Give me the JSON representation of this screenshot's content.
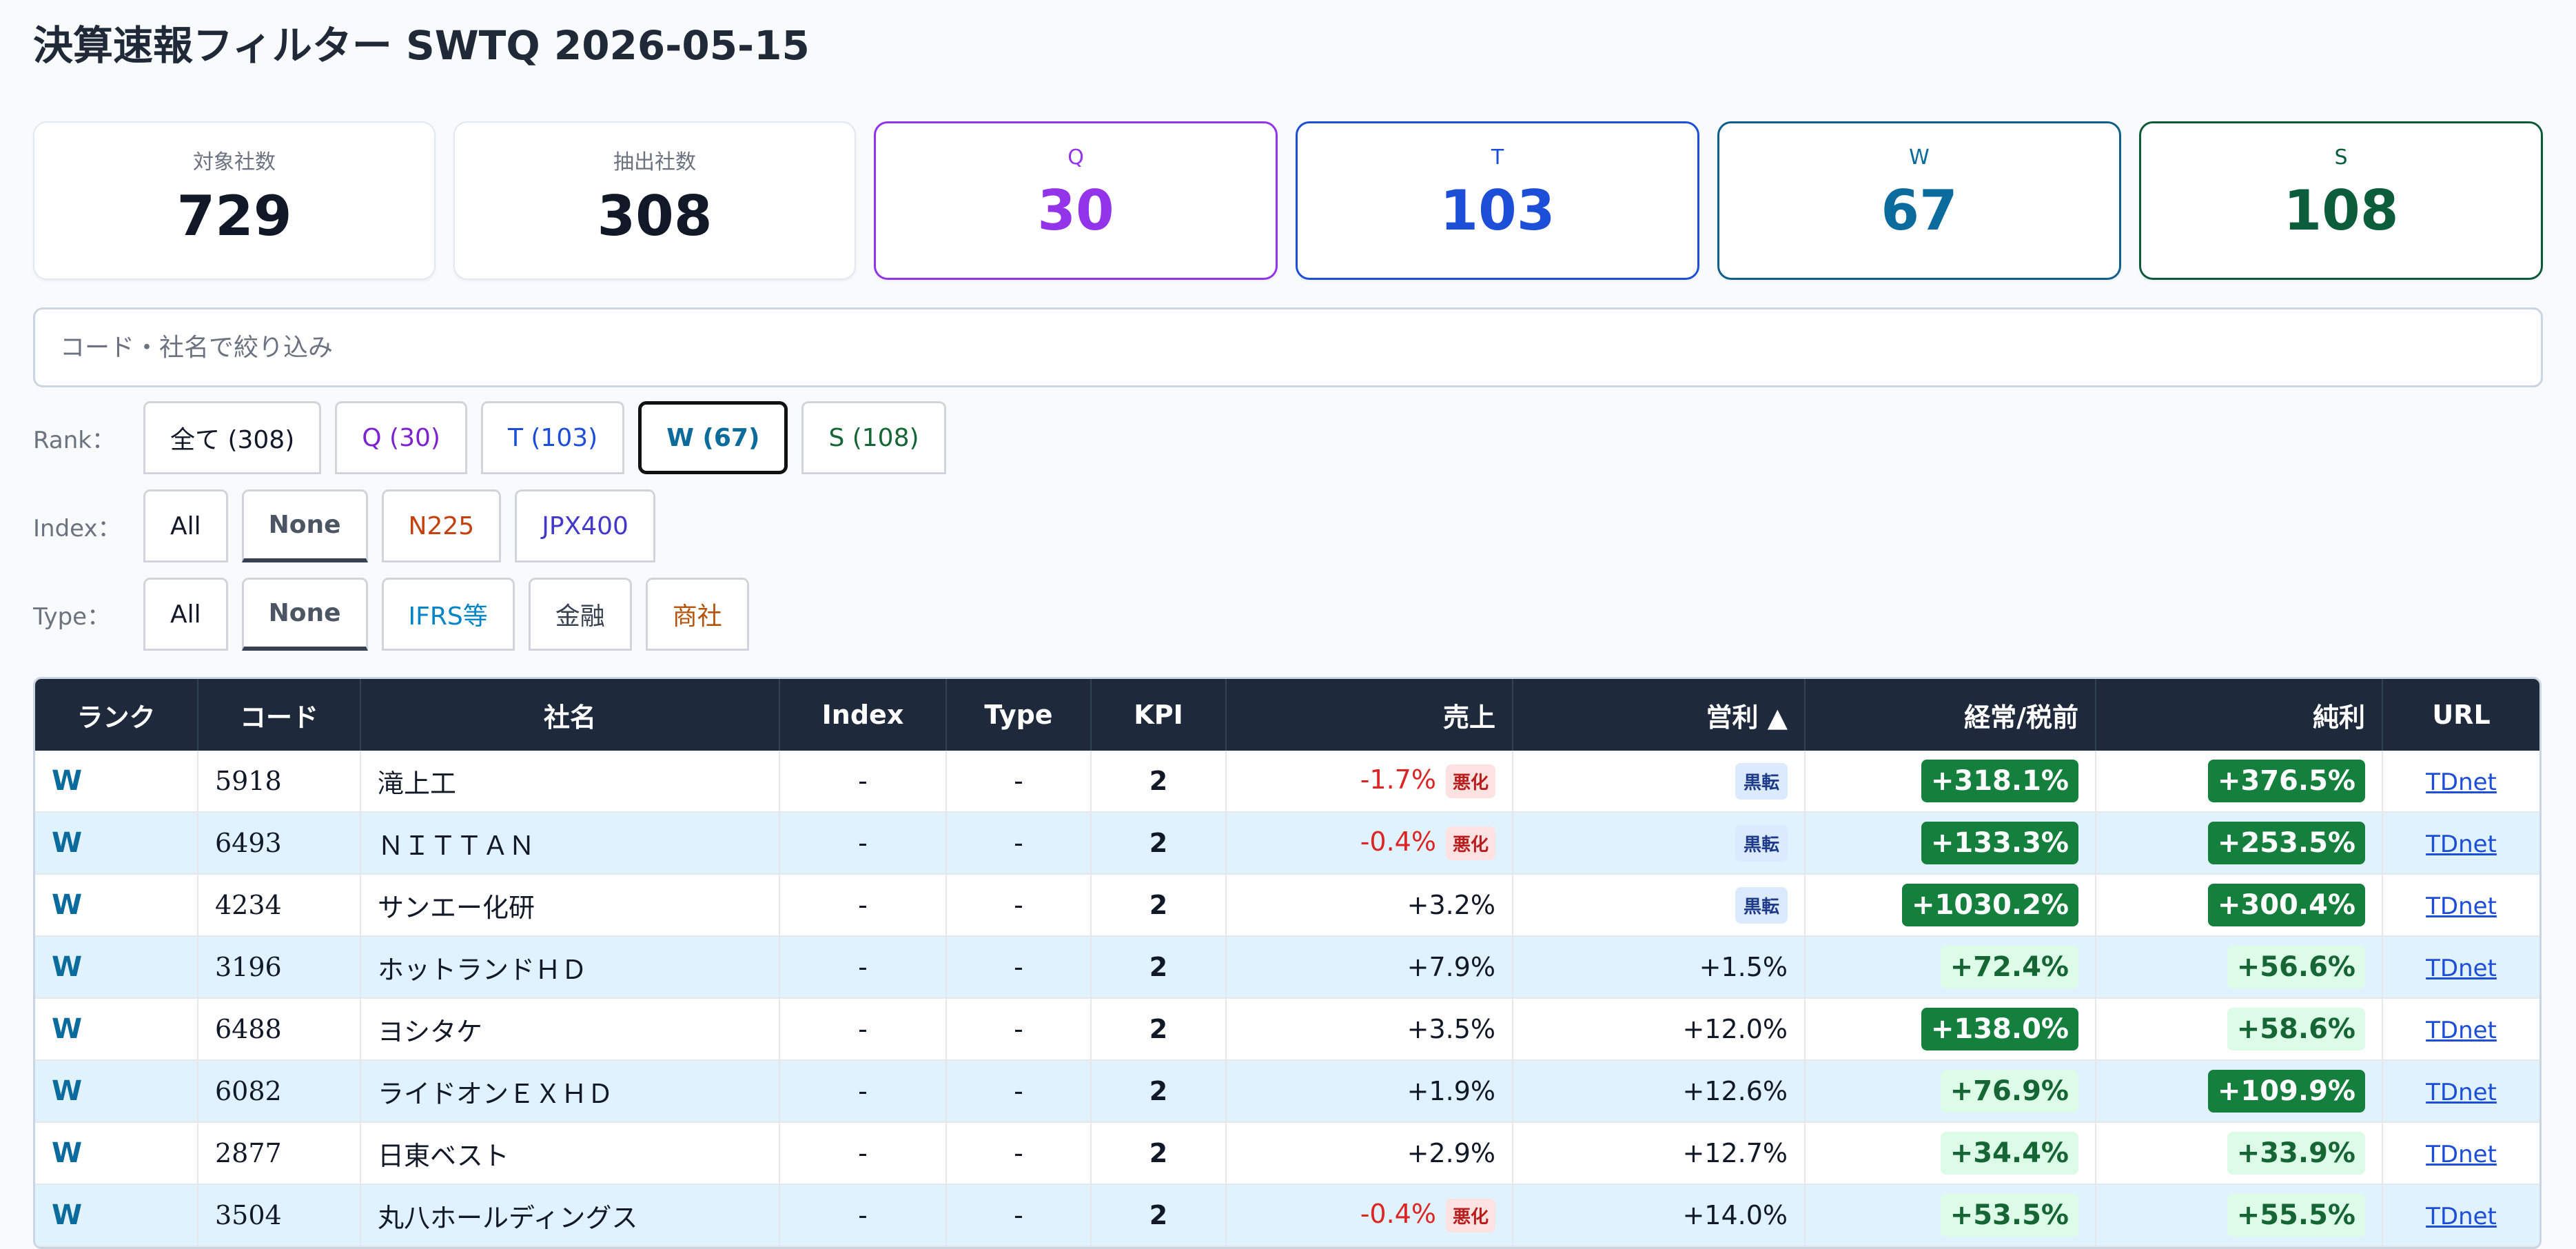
{
  "page": {
    "title": "決算速報フィルター SWTQ 2026-05-15"
  },
  "stats": [
    {
      "label": "対象社数",
      "value": "729",
      "style": "plain"
    },
    {
      "label": "抽出社数",
      "value": "308",
      "style": "plain"
    },
    {
      "label": "Q",
      "value": "30",
      "style": "q"
    },
    {
      "label": "T",
      "value": "103",
      "style": "t"
    },
    {
      "label": "W",
      "value": "67",
      "style": "w"
    },
    {
      "label": "S",
      "value": "108",
      "style": "s"
    }
  ],
  "search": {
    "placeholder": "コード・社名で絞り込み",
    "value": ""
  },
  "filters": {
    "rank": {
      "label": "Rank：",
      "chips": [
        "全て (308)",
        "Q (30)",
        "T (103)",
        "W (67)",
        "S (108)"
      ],
      "selected": "W (67)"
    },
    "index": {
      "label": "Index：",
      "chips": [
        "All",
        "None",
        "N225",
        "JPX400"
      ],
      "selected": "None"
    },
    "type": {
      "label": "Type：",
      "chips": [
        "All",
        "None",
        "IFRS等",
        "金融",
        "商社"
      ],
      "selected": "None"
    }
  },
  "table": {
    "headers": [
      "ランク",
      "コード",
      "社名",
      "Index",
      "Type",
      "KPI",
      "売上",
      "営利 ▲",
      "経常/税前",
      "純利",
      "URL"
    ],
    "rows": [
      {
        "rank": "W",
        "code": "5918",
        "name": "滝上工",
        "index": "-",
        "type": "-",
        "kpi": "2",
        "sales": "-1.7%",
        "sales_tag": "悪化",
        "op": "黒転",
        "op_kind": "turn",
        "ord": "+318.1%",
        "ord_kind": "strong",
        "net": "+376.5%",
        "net_kind": "strong",
        "url": "TDnet"
      },
      {
        "rank": "W",
        "code": "6493",
        "name": "ＮＩＴＴＡＮ",
        "index": "-",
        "type": "-",
        "kpi": "2",
        "sales": "-0.4%",
        "sales_tag": "悪化",
        "op": "黒転",
        "op_kind": "turn",
        "ord": "+133.3%",
        "ord_kind": "strong",
        "net": "+253.5%",
        "net_kind": "strong",
        "url": "TDnet"
      },
      {
        "rank": "W",
        "code": "4234",
        "name": "サンエー化研",
        "index": "-",
        "type": "-",
        "kpi": "2",
        "sales": "+3.2%",
        "sales_tag": "",
        "op": "黒転",
        "op_kind": "turn",
        "ord": "+1030.2%",
        "ord_kind": "strong",
        "net": "+300.4%",
        "net_kind": "strong",
        "url": "TDnet"
      },
      {
        "rank": "W",
        "code": "3196",
        "name": "ホットランドＨＤ",
        "index": "-",
        "type": "-",
        "kpi": "2",
        "sales": "+7.9%",
        "sales_tag": "",
        "op": "+1.5%",
        "op_kind": "plain",
        "ord": "+72.4%",
        "ord_kind": "light",
        "net": "+56.6%",
        "net_kind": "light",
        "url": "TDnet"
      },
      {
        "rank": "W",
        "code": "6488",
        "name": "ヨシタケ",
        "index": "-",
        "type": "-",
        "kpi": "2",
        "sales": "+3.5%",
        "sales_tag": "",
        "op": "+12.0%",
        "op_kind": "plain",
        "ord": "+138.0%",
        "ord_kind": "strong",
        "net": "+58.6%",
        "net_kind": "light",
        "url": "TDnet"
      },
      {
        "rank": "W",
        "code": "6082",
        "name": "ライドオンＥＸＨＤ",
        "index": "-",
        "type": "-",
        "kpi": "2",
        "sales": "+1.9%",
        "sales_tag": "",
        "op": "+12.6%",
        "op_kind": "plain",
        "ord": "+76.9%",
        "ord_kind": "light",
        "net": "+109.9%",
        "net_kind": "strong",
        "url": "TDnet"
      },
      {
        "rank": "W",
        "code": "2877",
        "name": "日東ベスト",
        "index": "-",
        "type": "-",
        "kpi": "2",
        "sales": "+2.9%",
        "sales_tag": "",
        "op": "+12.7%",
        "op_kind": "plain",
        "ord": "+34.4%",
        "ord_kind": "light",
        "net": "+33.9%",
        "net_kind": "light",
        "url": "TDnet"
      },
      {
        "rank": "W",
        "code": "3504",
        "name": "丸八ホールディングス",
        "index": "-",
        "type": "-",
        "kpi": "2",
        "sales": "-0.4%",
        "sales_tag": "悪化",
        "op": "+14.0%",
        "op_kind": "plain",
        "ord": "+53.5%",
        "ord_kind": "light",
        "net": "+55.5%",
        "net_kind": "light",
        "url": "TDnet"
      }
    ]
  }
}
